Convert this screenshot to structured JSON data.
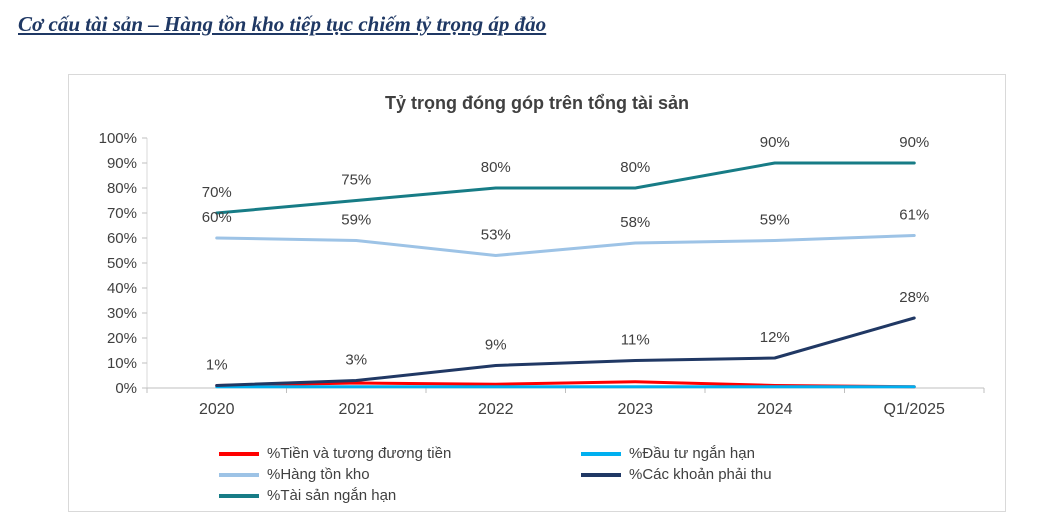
{
  "page": {
    "heading": "Cơ cấu tài sản – Hàng tồn kho tiếp tục chiếm tỷ trọng áp đảo",
    "heading_color": "#1F3864"
  },
  "chart_data": {
    "type": "line",
    "title": "Tỷ trọng đóng góp trên tổng tài sản",
    "categories": [
      "2020",
      "2021",
      "2022",
      "2023",
      "2024",
      "Q1/2025"
    ],
    "ylim": [
      0,
      100
    ],
    "y_tick_step": 10,
    "y_tick_labels": [
      "0%",
      "10%",
      "20%",
      "30%",
      "40%",
      "50%",
      "60%",
      "70%",
      "80%",
      "90%",
      "100%"
    ],
    "label_format": "{v}%",
    "grid": false,
    "legend_position": "bottom",
    "axis_color": "#BFBFBF",
    "text_color": "#404040",
    "series": [
      {
        "name": "%Tiền và tương đương tiền",
        "color": "#FF0000",
        "values": [
          1,
          2,
          1.5,
          2.5,
          1,
          0.5
        ],
        "show_labels": false
      },
      {
        "name": "%Đầu tư ngắn hạn",
        "color": "#00B0F0",
        "values": [
          0.5,
          0.5,
          0.5,
          0.5,
          0.5,
          0.5
        ],
        "show_labels": false
      },
      {
        "name": "%Hàng tồn kho",
        "color": "#9DC3E6",
        "values": [
          60,
          59,
          53,
          58,
          59,
          61
        ],
        "show_labels": true
      },
      {
        "name": "%Các khoản phải thu",
        "color": "#203864",
        "values": [
          1,
          3,
          9,
          11,
          12,
          28
        ],
        "show_labels": true
      },
      {
        "name": "%Tài sản ngắn hạn",
        "color": "#177C86",
        "values": [
          70,
          75,
          80,
          80,
          90,
          90
        ],
        "show_labels": true
      }
    ]
  }
}
